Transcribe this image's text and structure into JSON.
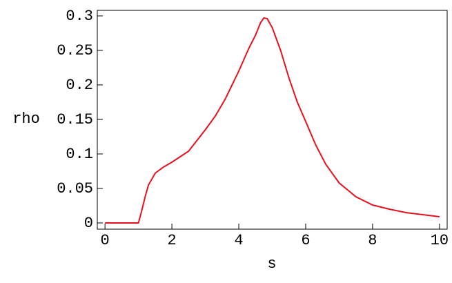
{
  "chart_data": {
    "type": "line",
    "xlabel": "s",
    "ylabel": "rho",
    "x": [
      0,
      1,
      1.1,
      1.2,
      1.3,
      1.5,
      1.75,
      2,
      2.5,
      3,
      3.3,
      3.6,
      4,
      4.3,
      4.5,
      4.65,
      4.75,
      4.85,
      5,
      5.25,
      5.5,
      5.75,
      6,
      6.3,
      6.6,
      7,
      7.5,
      8,
      8.5,
      9,
      9.5,
      10
    ],
    "series": [
      {
        "color": "#e8101c",
        "values": [
          0,
          0,
          0.018,
          0.038,
          0.055,
          0.072,
          0.081,
          0.088,
          0.104,
          0.135,
          0.155,
          0.18,
          0.22,
          0.253,
          0.272,
          0.29,
          0.297,
          0.296,
          0.283,
          0.25,
          0.21,
          0.175,
          0.147,
          0.113,
          0.085,
          0.058,
          0.038,
          0.026,
          0.02,
          0.015,
          0.012,
          0.009
        ]
      }
    ],
    "xlim": [
      -0.23,
      10.23
    ],
    "ylim": [
      -0.009,
      0.308
    ],
    "xticks": [
      0,
      2,
      4,
      6,
      8,
      10
    ],
    "yticks": [
      0,
      0.05,
      0.1,
      0.15,
      0.2,
      0.25,
      0.3
    ]
  }
}
